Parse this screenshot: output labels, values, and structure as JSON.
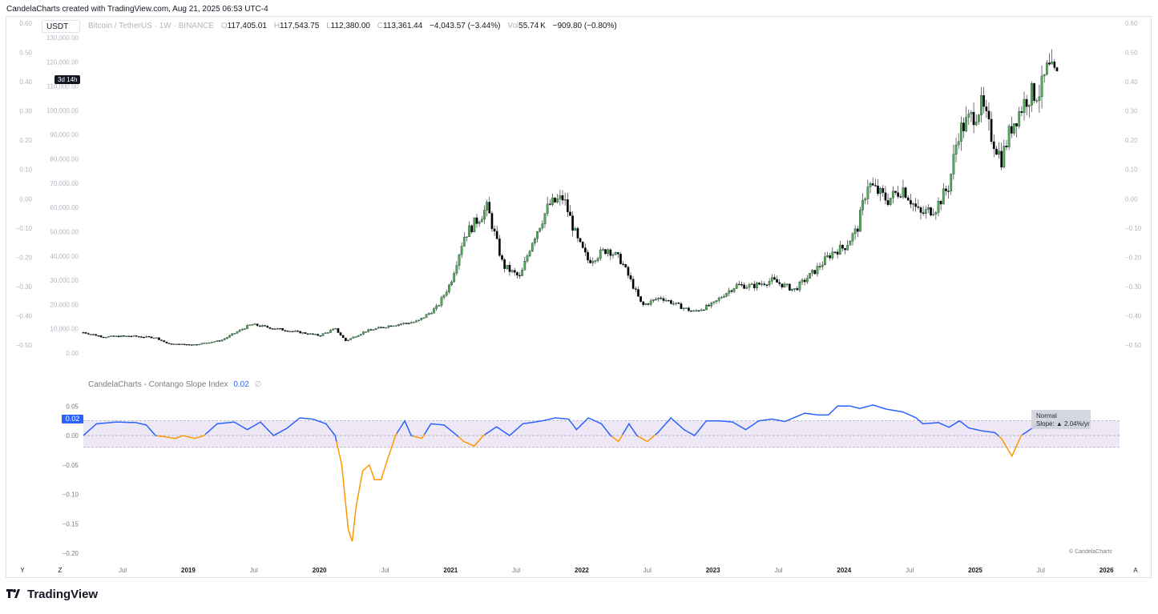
{
  "header": {
    "credit": "CandelaCharts created with TradingView.com, Aug 21, 2025 06:53 UTC-4"
  },
  "toolbar": {
    "currency": "USDT"
  },
  "legend": {
    "symbol": "Bitcoin / TetherUS · 1W · BINANCE",
    "open_label": "O",
    "open": "117,405.01",
    "high_label": "H",
    "high": "117,543.75",
    "low_label": "L",
    "low": "112,380.00",
    "close_label": "C",
    "close": "113,361.44",
    "change": "−4,043.57 (−3.44%)",
    "vol_label": "Vol",
    "vol": "55.74 K",
    "vol_change": "−909.80 (−0.80%)"
  },
  "timer": "3d 14h",
  "indicator": {
    "name": "CandelaCharts - Contango Slope Index",
    "value": "0.02",
    "symbol": "∅",
    "badge": "0.02",
    "status_line1": "Normal",
    "status_line2": "Slope: ▲ 2.04%/yr",
    "copyright": "© CandelaCharts"
  },
  "corners": {
    "y": "Y",
    "z": "Z",
    "a": "A"
  },
  "brand": {
    "name": "TradingView"
  },
  "colors": {
    "up": "#4caf50",
    "down": "#000000",
    "line_blue": "#2962ff",
    "line_orange": "#ff9800",
    "band_fill": "#ede7f6",
    "band_line": "#9598a1"
  },
  "chart_data": [
    {
      "type": "candlestick",
      "title": "",
      "ylabel": "",
      "ylim": [
        0,
        130000
      ],
      "left_axis_ticks": [
        "130,000.00",
        "120,000.00",
        "110,000.00",
        "100,000.00",
        "90,000.00",
        "80,000.00",
        "70,000.00",
        "60,000.00",
        "50,000.00",
        "40,000.00",
        "30,000.00",
        "20,000.00",
        "10,000.00",
        "0.00"
      ],
      "right_axis_ticks": [
        "0.60",
        "0.50",
        "0.40",
        "0.30",
        "0.20",
        "0.10",
        "0.00",
        "−0.10",
        "−0.20",
        "−0.30",
        "−0.40",
        "−0.50"
      ],
      "left_overlay_ticks": [
        "0.60",
        "0.50",
        "0.40",
        "0.30",
        "0.20",
        "0.10",
        "0.00",
        "−0.10",
        "−0.20",
        "−0.30",
        "−0.40",
        "−0.50"
      ],
      "x_ticks": [
        "Jul",
        "2019",
        "Jul",
        "2020",
        "Jul",
        "2021",
        "Jul",
        "2022",
        "Jul",
        "2023",
        "Jul",
        "2024",
        "Jul",
        "2025",
        "Jul",
        "2026"
      ],
      "x_range": [
        2018.2,
        2026.1
      ],
      "anchors": [
        [
          2018.2,
          8500
        ],
        [
          2018.35,
          6700
        ],
        [
          2018.55,
          7000
        ],
        [
          2018.75,
          6400
        ],
        [
          2018.85,
          3700
        ],
        [
          2019.05,
          3500
        ],
        [
          2019.25,
          5200
        ],
        [
          2019.48,
          11800
        ],
        [
          2019.65,
          10200
        ],
        [
          2019.85,
          8500
        ],
        [
          2020.0,
          7200
        ],
        [
          2020.12,
          10000
        ],
        [
          2020.2,
          5000
        ],
        [
          2020.35,
          9000
        ],
        [
          2020.55,
          11500
        ],
        [
          2020.75,
          13000
        ],
        [
          2020.9,
          19000
        ],
        [
          2021.0,
          29000
        ],
        [
          2021.1,
          48000
        ],
        [
          2021.28,
          60000
        ],
        [
          2021.4,
          36000
        ],
        [
          2021.53,
          31000
        ],
        [
          2021.62,
          46000
        ],
        [
          2021.75,
          61000
        ],
        [
          2021.86,
          64000
        ],
        [
          2021.97,
          46000
        ],
        [
          2022.05,
          38000
        ],
        [
          2022.2,
          43000
        ],
        [
          2022.3,
          38000
        ],
        [
          2022.38,
          29000
        ],
        [
          2022.46,
          19500
        ],
        [
          2022.6,
          23000
        ],
        [
          2022.75,
          19200
        ],
        [
          2022.85,
          17000
        ],
        [
          2023.0,
          20000
        ],
        [
          2023.08,
          24000
        ],
        [
          2023.18,
          28000
        ],
        [
          2023.3,
          27500
        ],
        [
          2023.45,
          30000
        ],
        [
          2023.62,
          26000
        ],
        [
          2023.78,
          34000
        ],
        [
          2023.92,
          42000
        ],
        [
          2024.0,
          43500
        ],
        [
          2024.1,
          51000
        ],
        [
          2024.18,
          70000
        ],
        [
          2024.33,
          63000
        ],
        [
          2024.45,
          68000
        ],
        [
          2024.58,
          57000
        ],
        [
          2024.7,
          60000
        ],
        [
          2024.8,
          69000
        ],
        [
          2024.87,
          91000
        ],
        [
          2024.95,
          96000
        ],
        [
          2025.05,
          102000
        ],
        [
          2025.12,
          90000
        ],
        [
          2025.2,
          80000
        ],
        [
          2025.28,
          94000
        ],
        [
          2025.4,
          106000
        ],
        [
          2025.5,
          108000
        ],
        [
          2025.55,
          117000
        ],
        [
          2025.62,
          113361
        ]
      ]
    },
    {
      "type": "line",
      "title": "CandelaCharts - Contango Slope Index",
      "ylim": [
        -0.2,
        0.06
      ],
      "y_ticks": [
        "0.05",
        "0.00",
        "−0.05",
        "−0.10",
        "−0.15",
        "−0.20"
      ],
      "band": {
        "upper": 0.025,
        "lower": -0.02,
        "mid": 0.0
      },
      "anchors": [
        [
          2018.2,
          0.0
        ],
        [
          2018.3,
          0.02
        ],
        [
          2018.45,
          0.023
        ],
        [
          2018.6,
          0.022
        ],
        [
          2018.68,
          0.018
        ],
        [
          2018.75,
          0.0
        ],
        [
          2018.82,
          -0.002
        ],
        [
          2018.9,
          -0.005
        ],
        [
          2018.96,
          0.0
        ],
        [
          2019.05,
          -0.005
        ],
        [
          2019.12,
          0.0
        ],
        [
          2019.22,
          0.02
        ],
        [
          2019.35,
          0.023
        ],
        [
          2019.45,
          0.01
        ],
        [
          2019.55,
          0.023
        ],
        [
          2019.65,
          0.0
        ],
        [
          2019.75,
          0.012
        ],
        [
          2019.85,
          0.03
        ],
        [
          2019.95,
          0.028
        ],
        [
          2020.05,
          0.02
        ],
        [
          2020.12,
          0.0
        ],
        [
          2020.17,
          -0.05
        ],
        [
          2020.22,
          -0.16
        ],
        [
          2020.25,
          -0.18
        ],
        [
          2020.28,
          -0.12
        ],
        [
          2020.33,
          -0.06
        ],
        [
          2020.38,
          -0.05
        ],
        [
          2020.42,
          -0.075
        ],
        [
          2020.47,
          -0.075
        ],
        [
          2020.52,
          -0.04
        ],
        [
          2020.58,
          0.0
        ],
        [
          2020.65,
          0.025
        ],
        [
          2020.7,
          0.0
        ],
        [
          2020.78,
          -0.005
        ],
        [
          2020.85,
          0.02
        ],
        [
          2020.95,
          0.018
        ],
        [
          2021.05,
          0.0
        ],
        [
          2021.1,
          -0.01
        ],
        [
          2021.18,
          -0.018
        ],
        [
          2021.25,
          0.0
        ],
        [
          2021.35,
          0.015
        ],
        [
          2021.45,
          0.0
        ],
        [
          2021.55,
          0.02
        ],
        [
          2021.7,
          0.025
        ],
        [
          2021.8,
          0.03
        ],
        [
          2021.9,
          0.028
        ],
        [
          2021.96,
          0.01
        ],
        [
          2022.05,
          0.03
        ],
        [
          2022.15,
          0.02
        ],
        [
          2022.22,
          0.0
        ],
        [
          2022.28,
          -0.01
        ],
        [
          2022.36,
          0.02
        ],
        [
          2022.42,
          0.0
        ],
        [
          2022.5,
          -0.01
        ],
        [
          2022.58,
          0.005
        ],
        [
          2022.68,
          0.03
        ],
        [
          2022.78,
          0.01
        ],
        [
          2022.86,
          0.0
        ],
        [
          2022.95,
          0.025
        ],
        [
          2023.05,
          0.025
        ],
        [
          2023.15,
          0.023
        ],
        [
          2023.25,
          0.01
        ],
        [
          2023.35,
          0.025
        ],
        [
          2023.45,
          0.028
        ],
        [
          2023.55,
          0.024
        ],
        [
          2023.7,
          0.038
        ],
        [
          2023.8,
          0.035
        ],
        [
          2023.88,
          0.035
        ],
        [
          2023.95,
          0.05
        ],
        [
          2024.05,
          0.05
        ],
        [
          2024.12,
          0.046
        ],
        [
          2024.22,
          0.052
        ],
        [
          2024.32,
          0.045
        ],
        [
          2024.45,
          0.04
        ],
        [
          2024.55,
          0.03
        ],
        [
          2024.6,
          0.02
        ],
        [
          2024.72,
          0.022
        ],
        [
          2024.8,
          0.014
        ],
        [
          2024.88,
          0.025
        ],
        [
          2024.95,
          0.013
        ],
        [
          2025.05,
          0.008
        ],
        [
          2025.15,
          0.005
        ],
        [
          2025.2,
          -0.005
        ],
        [
          2025.28,
          -0.035
        ],
        [
          2025.35,
          0.0
        ],
        [
          2025.45,
          0.015
        ],
        [
          2025.55,
          0.025
        ],
        [
          2025.62,
          0.02
        ]
      ]
    }
  ]
}
